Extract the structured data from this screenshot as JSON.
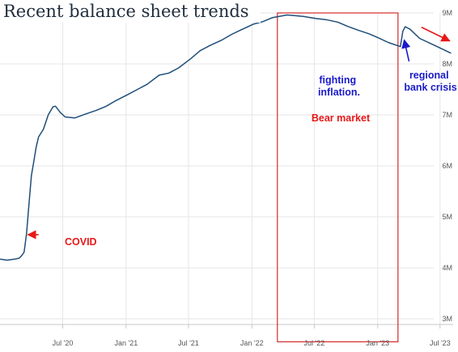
{
  "chart_data": {
    "type": "line",
    "title": "Recent balance sheet trends",
    "xlabel": "",
    "ylabel": "",
    "y_unit": "USD trillions (M label = trillions as printed)",
    "ylim": [
      3,
      9
    ],
    "yticks": [
      {
        "value": 3,
        "label": "3M"
      },
      {
        "value": 4,
        "label": "4M"
      },
      {
        "value": 5,
        "label": "5M"
      },
      {
        "value": 6,
        "label": "6M"
      },
      {
        "value": 7,
        "label": "7M"
      },
      {
        "value": 8,
        "label": "8M"
      },
      {
        "value": 9,
        "label": "9M"
      }
    ],
    "xlim": [
      "2020-01-01",
      "2023-08-08"
    ],
    "xticks": [
      {
        "date": "2020-07-01",
        "label": "Jul '20"
      },
      {
        "date": "2021-01-01",
        "label": "Jan '21"
      },
      {
        "date": "2021-07-01",
        "label": "Jul '21"
      },
      {
        "date": "2022-01-01",
        "label": "Jan '22"
      },
      {
        "date": "2022-07-01",
        "label": "Jul '22"
      },
      {
        "date": "2023-01-01",
        "label": "Jan '23"
      },
      {
        "date": "2023-07-01",
        "label": "Jul '23"
      }
    ],
    "grid": true,
    "series": [
      {
        "color": "#1f4e79",
        "points": [
          [
            "2020-01-01",
            4.17
          ],
          [
            "2020-01-22",
            4.15
          ],
          [
            "2020-02-12",
            4.17
          ],
          [
            "2020-02-26",
            4.19
          ],
          [
            "2020-03-04",
            4.24
          ],
          [
            "2020-03-11",
            4.31
          ],
          [
            "2020-03-18",
            4.67
          ],
          [
            "2020-03-25",
            5.25
          ],
          [
            "2020-04-01",
            5.81
          ],
          [
            "2020-04-08",
            6.08
          ],
          [
            "2020-04-15",
            6.37
          ],
          [
            "2020-04-22",
            6.57
          ],
          [
            "2020-05-06",
            6.72
          ],
          [
            "2020-05-20",
            7.0
          ],
          [
            "2020-06-03",
            7.16
          ],
          [
            "2020-06-10",
            7.17
          ],
          [
            "2020-06-24",
            7.05
          ],
          [
            "2020-07-08",
            6.96
          ],
          [
            "2020-08-05",
            6.94
          ],
          [
            "2020-09-02",
            7.01
          ],
          [
            "2020-10-07",
            7.09
          ],
          [
            "2020-11-04",
            7.17
          ],
          [
            "2020-12-02",
            7.28
          ],
          [
            "2021-01-06",
            7.4
          ],
          [
            "2021-02-03",
            7.5
          ],
          [
            "2021-03-03",
            7.6
          ],
          [
            "2021-04-07",
            7.78
          ],
          [
            "2021-05-05",
            7.82
          ],
          [
            "2021-06-02",
            7.92
          ],
          [
            "2021-07-07",
            8.1
          ],
          [
            "2021-08-04",
            8.26
          ],
          [
            "2021-09-01",
            8.36
          ],
          [
            "2021-10-06",
            8.47
          ],
          [
            "2021-11-03",
            8.58
          ],
          [
            "2021-12-01",
            8.67
          ],
          [
            "2022-01-05",
            8.78
          ],
          [
            "2022-02-02",
            8.83
          ],
          [
            "2022-03-02",
            8.91
          ],
          [
            "2022-04-13",
            8.96
          ],
          [
            "2022-05-04",
            8.95
          ],
          [
            "2022-06-01",
            8.93
          ],
          [
            "2022-07-06",
            8.89
          ],
          [
            "2022-08-03",
            8.87
          ],
          [
            "2022-09-07",
            8.82
          ],
          [
            "2022-10-05",
            8.74
          ],
          [
            "2022-11-02",
            8.67
          ],
          [
            "2022-12-07",
            8.59
          ],
          [
            "2023-01-04",
            8.51
          ],
          [
            "2023-02-01",
            8.42
          ],
          [
            "2023-03-08",
            8.34
          ],
          [
            "2023-03-15",
            8.64
          ],
          [
            "2023-03-22",
            8.73
          ],
          [
            "2023-04-05",
            8.68
          ],
          [
            "2023-05-03",
            8.5
          ],
          [
            "2023-06-07",
            8.39
          ],
          [
            "2023-07-05",
            8.3
          ],
          [
            "2023-08-02",
            8.21
          ]
        ]
      }
    ],
    "highlight_region": {
      "from": "2022-03-16",
      "to": "2023-03-01",
      "ymin": 2.55,
      "ymax": 9.0,
      "color": "#cc0000"
    },
    "annotations": [
      {
        "text": "COVID",
        "color": "#e81818",
        "arrow": {
          "from": [
            "2020-04-22",
            4.65
          ],
          "to": [
            "2020-03-22",
            4.65
          ]
        }
      },
      {
        "text_lines": [
          "fighting",
          "inflation."
        ],
        "color": "#1a1acc"
      },
      {
        "text": "Bear market",
        "color": "#e81818"
      },
      {
        "text_lines": [
          "regional",
          "bank crisis"
        ],
        "color": "#1a1acc",
        "arrow": {
          "from": [
            "2023-04-02",
            8.05
          ],
          "to": [
            "2023-03-19",
            8.47
          ]
        }
      },
      {
        "text": "",
        "color": "#e81818",
        "arrow": {
          "from": [
            "2023-05-08",
            8.72
          ],
          "to": [
            "2023-07-29",
            8.45
          ]
        }
      }
    ]
  }
}
